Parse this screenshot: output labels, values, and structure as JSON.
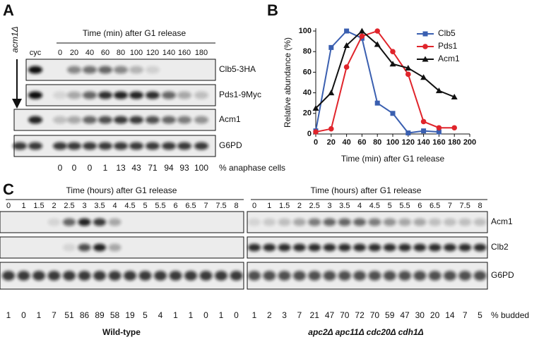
{
  "panel_a": {
    "label": "A",
    "strain": "acm1Δ",
    "header": "Time (min) after G1 release",
    "lanes": [
      "cyc",
      0,
      20,
      40,
      60,
      80,
      100,
      120,
      140,
      160,
      180
    ],
    "blots": [
      "Clb5-3HA",
      "Pds1-9Myc",
      "Acm1",
      "G6PD"
    ],
    "anaphase": [
      0,
      0,
      0,
      1,
      13,
      43,
      71,
      94,
      93,
      100
    ],
    "anaphase_label": "% anaphase cells"
  },
  "chart_data": {
    "type": "line",
    "panel": "B",
    "ylabel": "Relative abundance (%)",
    "xlabel": "Time (min) after G1 release",
    "x": [
      0,
      20,
      40,
      60,
      80,
      100,
      120,
      140,
      160,
      180
    ],
    "xlim": [
      0,
      200
    ],
    "xticks": [
      0,
      20,
      40,
      60,
      80,
      100,
      120,
      140,
      160,
      180,
      200
    ],
    "ylim": [
      0,
      100
    ],
    "yticks": [
      0,
      20,
      40,
      60,
      80,
      100
    ],
    "legend": "upper right",
    "series": [
      {
        "name": "Clb5",
        "color": "#3a5fb0",
        "marker": "square",
        "values": [
          3,
          84,
          100,
          93,
          30,
          20,
          1,
          3,
          2,
          null
        ]
      },
      {
        "name": "Pds1",
        "color": "#e0242b",
        "marker": "circle",
        "values": [
          2,
          5,
          65,
          95,
          100,
          80,
          58,
          12,
          6,
          6
        ]
      },
      {
        "name": "Acm1",
        "color": "#111111",
        "marker": "triangle",
        "values": [
          25,
          40,
          86,
          100,
          87,
          68,
          64,
          55,
          42,
          36
        ]
      }
    ]
  },
  "panel_c": {
    "label": "C",
    "header": "Time (hours) after G1 release",
    "lanes": [
      0,
      1,
      1.5,
      2,
      2.5,
      3,
      3.5,
      4,
      4.5,
      5,
      5.5,
      6,
      6.5,
      7,
      7.5,
      8
    ],
    "blots": [
      "Acm1",
      "Clb2",
      "G6PD"
    ],
    "budded_label": "% budded",
    "strains": [
      {
        "name": "Wild-type",
        "budded": [
          1,
          0,
          1,
          7,
          51,
          86,
          89,
          58,
          19,
          5,
          4,
          1,
          1,
          0,
          1,
          0
        ]
      },
      {
        "name": "apc2Δ apc11Δ cdc20Δ cdh1Δ",
        "budded": [
          1,
          2,
          3,
          7,
          21,
          47,
          70,
          72,
          70,
          59,
          47,
          30,
          20,
          14,
          7,
          5
        ]
      }
    ]
  }
}
